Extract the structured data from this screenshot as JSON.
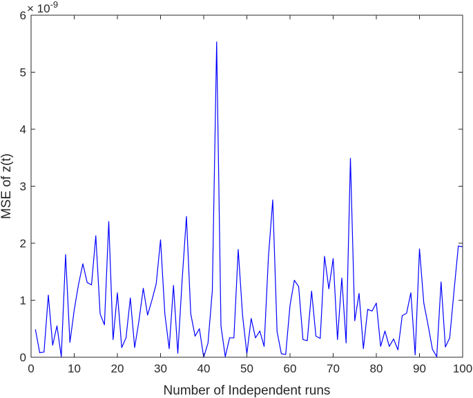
{
  "chart_data": {
    "type": "line",
    "title": "",
    "xlabel": "Number of Independent runs",
    "ylabel": "MSE of z(t)",
    "y_exponent_base": "× 10",
    "y_exponent_power": "-9",
    "xlim": [
      0,
      100
    ],
    "ylim": [
      0,
      6
    ],
    "xticks": [
      0,
      10,
      20,
      30,
      40,
      50,
      60,
      70,
      80,
      90,
      100
    ],
    "yticks": [
      0,
      1,
      2,
      3,
      4,
      5,
      6
    ],
    "grid": false,
    "line_color": "#0000ff",
    "series": [
      {
        "x": [
          1,
          2,
          3,
          4,
          5,
          6,
          7,
          8,
          9,
          10,
          11,
          12,
          13,
          14,
          15,
          16,
          17,
          18,
          19,
          20,
          21,
          22,
          23,
          24,
          25,
          26,
          27,
          28,
          29,
          30,
          31,
          32,
          33,
          34,
          35,
          36,
          37,
          38,
          39,
          40,
          41,
          42,
          43,
          44,
          45,
          46,
          47,
          48,
          49,
          50,
          51,
          52,
          53,
          54,
          55,
          56,
          57,
          58,
          59,
          60,
          61,
          62,
          63,
          64,
          65,
          66,
          67,
          68,
          69,
          70,
          71,
          72,
          73,
          74,
          75,
          76,
          77,
          78,
          79,
          80,
          81,
          82,
          83,
          84,
          85,
          86,
          87,
          88,
          89,
          90,
          91,
          92,
          93,
          94,
          95,
          96,
          97,
          98,
          99,
          100
        ],
        "y": [
          0.49,
          0.08,
          0.09,
          1.09,
          0.21,
          0.55,
          0.01,
          1.8,
          0.26,
          0.83,
          1.28,
          1.64,
          1.31,
          1.27,
          2.13,
          0.76,
          0.57,
          2.38,
          0.31,
          1.13,
          0.17,
          0.34,
          1.04,
          0.17,
          0.64,
          1.21,
          0.74,
          1.0,
          1.29,
          2.06,
          0.76,
          0.15,
          1.26,
          0.07,
          1.35,
          2.47,
          0.76,
          0.37,
          0.5,
          0.0,
          0.25,
          1.17,
          5.53,
          0.55,
          0.01,
          0.34,
          0.34,
          1.89,
          0.74,
          0.06,
          0.68,
          0.34,
          0.46,
          0.19,
          1.76,
          2.76,
          0.45,
          0.06,
          0.05,
          0.91,
          1.35,
          1.24,
          0.31,
          0.29,
          1.16,
          0.37,
          0.33,
          1.77,
          1.2,
          1.73,
          0.31,
          1.39,
          0.25,
          3.49,
          0.64,
          1.12,
          0.15,
          0.84,
          0.81,
          0.95,
          0.19,
          0.46,
          0.19,
          0.32,
          0.13,
          0.73,
          0.77,
          1.13,
          0.04,
          1.9,
          0.95,
          0.56,
          0.14,
          0.01,
          1.32,
          0.18,
          0.34,
          1.16,
          1.95,
          1.94
        ]
      }
    ]
  }
}
